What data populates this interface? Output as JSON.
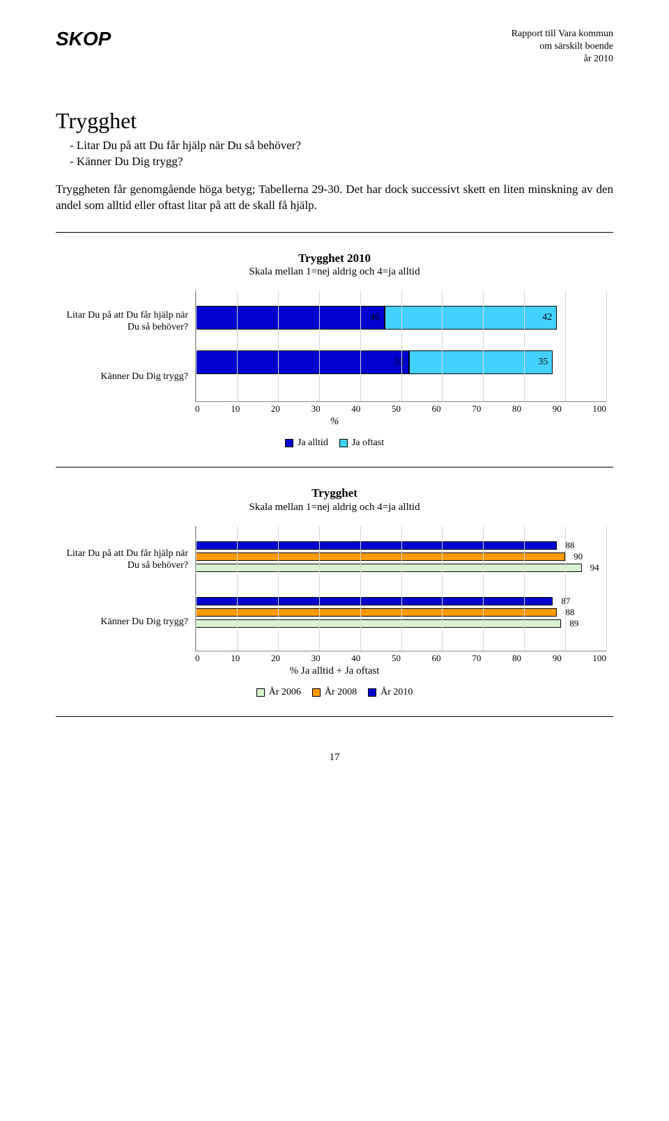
{
  "header": {
    "brand": "SKOP",
    "right_line1": "Rapport till Vara kommun",
    "right_line2": "om särskilt boende",
    "right_line3": "år 2010"
  },
  "section": {
    "title": "Trygghet",
    "bullet1": "- Litar Du på att Du får hjälp när Du så behöver?",
    "bullet2": "- Känner Du Dig trygg?",
    "paragraph": "Tryggheten får genomgående höga betyg; Tabellerna 29-30. Det har dock successivt skett en liten minskning av den andel som alltid eller oftast litar på att de skall få hjälp."
  },
  "chart1": {
    "type": "stacked-bar-horizontal",
    "title": "Trygghet 2010",
    "subtitle": "Skala mellan 1=nej aldrig och 4=ja alltid",
    "xlim": [
      0,
      100
    ],
    "xtick_step": 10,
    "xticks": [
      "0",
      "10",
      "20",
      "30",
      "40",
      "50",
      "60",
      "70",
      "80",
      "90",
      "100"
    ],
    "axis_label": "%",
    "grid_color": "#d8d8d8",
    "background_color": "#ffffff",
    "rows": [
      {
        "label": "Litar Du på att Du får hjälp när Du så behöver?",
        "segments": [
          {
            "value": 46,
            "color": "#0000d0"
          },
          {
            "value": 42,
            "color": "#42d1ff"
          }
        ]
      },
      {
        "label": "Känner Du Dig trygg?",
        "segments": [
          {
            "value": 52,
            "color": "#0000d0"
          },
          {
            "value": 35,
            "color": "#42d1ff"
          }
        ]
      }
    ],
    "legend": [
      {
        "label": "Ja alltid",
        "color": "#0000d0"
      },
      {
        "label": "Ja oftast",
        "color": "#42d1ff"
      }
    ]
  },
  "chart2": {
    "type": "grouped-bar-horizontal",
    "title": "Trygghet",
    "subtitle": "Skala mellan 1=nej aldrig och 4=ja alltid",
    "xlim": [
      0,
      100
    ],
    "xtick_step": 10,
    "xticks": [
      "0",
      "10",
      "20",
      "30",
      "40",
      "50",
      "60",
      "70",
      "80",
      "90",
      "100"
    ],
    "axis_label": "% Ja alltid + Ja oftast",
    "grid_color": "#d8d8d8",
    "background_color": "#ffffff",
    "rows": [
      {
        "label": "Litar Du på att Du får hjälp när Du så behöver?",
        "bars": [
          {
            "value": 88,
            "color": "#0000d0"
          },
          {
            "value": 90,
            "color": "#ff9a00"
          },
          {
            "value": 94,
            "color": "#d9f2d0"
          }
        ]
      },
      {
        "label": "Känner Du Dig trygg?",
        "bars": [
          {
            "value": 87,
            "color": "#0000d0"
          },
          {
            "value": 88,
            "color": "#ff9a00"
          },
          {
            "value": 89,
            "color": "#d9f2d0"
          }
        ]
      }
    ],
    "legend": [
      {
        "label": "År 2006",
        "color": "#d9f2d0"
      },
      {
        "label": "År 2008",
        "color": "#ff9a00"
      },
      {
        "label": "År 2010",
        "color": "#0000d0"
      }
    ]
  },
  "page_number": "17"
}
